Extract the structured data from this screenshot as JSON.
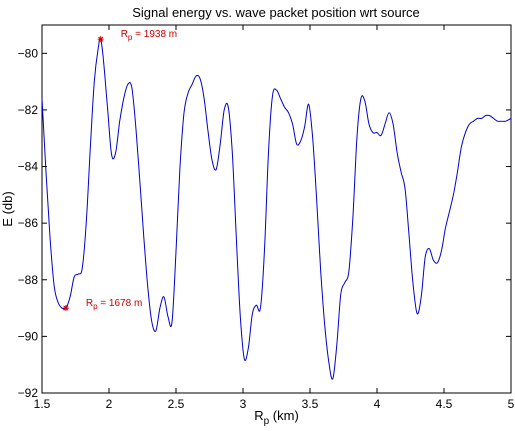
{
  "chart_data": {
    "type": "line",
    "title": "Signal energy vs. wave packet position wrt source",
    "xlabel": {
      "main": "R",
      "sub": "p",
      "unit": " (km)"
    },
    "ylabel": "E (db)",
    "xlim": [
      1.5,
      5.0
    ],
    "ylim": [
      -92,
      -79
    ],
    "xticks": [
      1.5,
      2,
      2.5,
      3,
      3.5,
      4,
      4.5,
      5
    ],
    "xtick_labels": [
      "1.5",
      "2",
      "2.5",
      "3",
      "3.5",
      "4",
      "4.5",
      "5"
    ],
    "yticks": [
      -92,
      -90,
      -88,
      -86,
      -84,
      -82,
      -80
    ],
    "ytick_labels": [
      "−92",
      "−90",
      "−88",
      "−86",
      "−84",
      "−82",
      "−80"
    ],
    "grid": false,
    "line_color": "#0000cc",
    "marker_color": "#cc0000",
    "series": [
      {
        "x": [
          1.5,
          1.53,
          1.56,
          1.59,
          1.62,
          1.65,
          1.678,
          1.71,
          1.74,
          1.77,
          1.8,
          1.83,
          1.86,
          1.89,
          1.92,
          1.938,
          1.96,
          1.99,
          2.02,
          2.05,
          2.08,
          2.11,
          2.14,
          2.17,
          2.2,
          2.23,
          2.26,
          2.29,
          2.32,
          2.35,
          2.38,
          2.41,
          2.44,
          2.47,
          2.5,
          2.53,
          2.56,
          2.59,
          2.62,
          2.65,
          2.68,
          2.71,
          2.74,
          2.77,
          2.8,
          2.83,
          2.86,
          2.89,
          2.92,
          2.95,
          2.98,
          3.01,
          3.04,
          3.07,
          3.1,
          3.13,
          3.16,
          3.19,
          3.22,
          3.25,
          3.28,
          3.31,
          3.34,
          3.37,
          3.4,
          3.43,
          3.46,
          3.49,
          3.52,
          3.55,
          3.58,
          3.61,
          3.64,
          3.67,
          3.7,
          3.73,
          3.76,
          3.79,
          3.82,
          3.85,
          3.88,
          3.91,
          3.94,
          3.97,
          4.0,
          4.03,
          4.06,
          4.09,
          4.12,
          4.15,
          4.18,
          4.21,
          4.24,
          4.27,
          4.3,
          4.33,
          4.36,
          4.39,
          4.42,
          4.45,
          4.48,
          4.51,
          4.54,
          4.57,
          4.6,
          4.63,
          4.66,
          4.69,
          4.72,
          4.75,
          4.78,
          4.81,
          4.84,
          4.87,
          4.9,
          4.93,
          4.96,
          5.0
        ],
        "y": [
          -81.6,
          -84.2,
          -86.5,
          -88.2,
          -88.8,
          -89.0,
          -89.0,
          -88.6,
          -87.9,
          -87.8,
          -87.6,
          -86.0,
          -83.4,
          -81.0,
          -79.8,
          -79.5,
          -80.3,
          -82.0,
          -83.6,
          -83.5,
          -82.4,
          -81.6,
          -81.1,
          -81.2,
          -82.6,
          -84.5,
          -86.5,
          -88.3,
          -89.5,
          -89.8,
          -89.0,
          -88.6,
          -89.3,
          -89.5,
          -87.0,
          -84.0,
          -82.1,
          -81.4,
          -81.1,
          -80.8,
          -80.9,
          -81.6,
          -82.8,
          -83.8,
          -84.1,
          -83.2,
          -82.0,
          -81.9,
          -83.5,
          -86.5,
          -89.3,
          -90.8,
          -90.4,
          -89.2,
          -88.9,
          -89.0,
          -87.0,
          -83.5,
          -81.5,
          -81.3,
          -81.6,
          -81.9,
          -82.1,
          -82.5,
          -83.2,
          -83.1,
          -82.6,
          -81.8,
          -83.0,
          -85.2,
          -87.7,
          -89.6,
          -90.9,
          -91.5,
          -90.3,
          -88.5,
          -88.1,
          -87.7,
          -85.8,
          -83.0,
          -81.6,
          -81.7,
          -82.5,
          -82.8,
          -82.8,
          -82.9,
          -82.5,
          -82.1,
          -82.5,
          -83.5,
          -84.2,
          -84.8,
          -86.5,
          -88.2,
          -89.2,
          -88.6,
          -87.2,
          -86.9,
          -87.3,
          -87.4,
          -87.0,
          -86.2,
          -85.6,
          -85.0,
          -84.2,
          -83.3,
          -82.8,
          -82.5,
          -82.4,
          -82.3,
          -82.3,
          -82.2,
          -82.2,
          -82.3,
          -82.4,
          -82.4,
          -82.4,
          -82.3
        ]
      }
    ],
    "annotations": [
      {
        "x": 1.938,
        "y": -79.5,
        "label": "R",
        "sub": "p",
        "value": "= 1938 m"
      },
      {
        "x": 1.678,
        "y": -89.0,
        "label": "R",
        "sub": "p",
        "value": "= 1678 m"
      }
    ]
  }
}
